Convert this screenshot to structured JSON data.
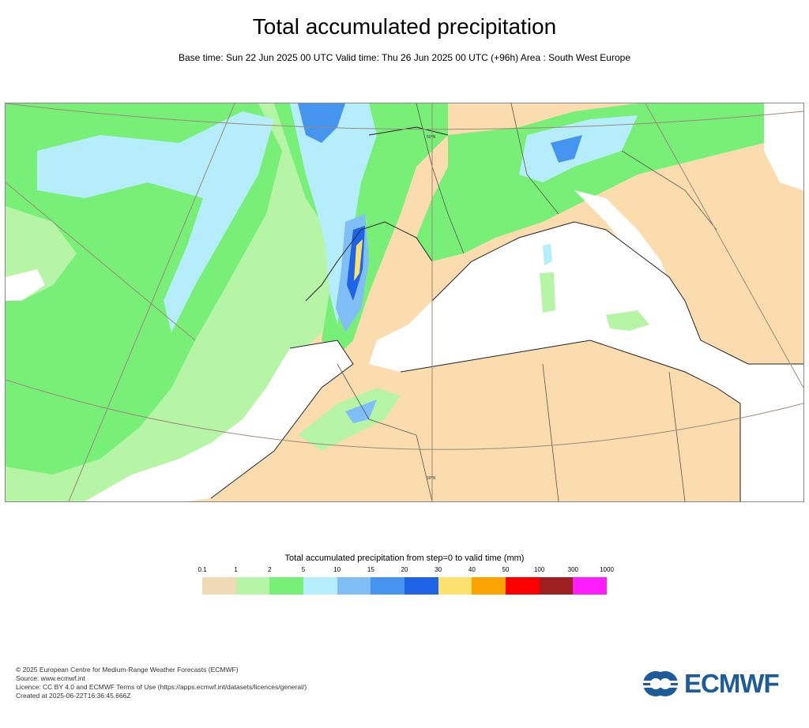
{
  "header": {
    "title": "Total accumulated precipitation",
    "subtitle": "Base time: Sun 22 Jun 2025 00 UTC Valid time: Thu 26 Jun 2025 00 UTC (+96h) Area : South West Europe"
  },
  "map": {
    "grid_labels": [
      "30°N"
    ],
    "lat_label_top": "50°N"
  },
  "legend": {
    "title": "Total accumulated precipitation from step=0 to valid time (mm)",
    "ticks": [
      "0.1",
      "1",
      "2",
      "5",
      "10",
      "15",
      "20",
      "30",
      "40",
      "50",
      "100",
      "300",
      "1000"
    ],
    "colors": [
      "#f0d9b5",
      "#b5f5a5",
      "#78f078",
      "#b5eefa",
      "#7fbef7",
      "#4595f0",
      "#1f64e6",
      "#fce16f",
      "#fba300",
      "#fa0000",
      "#9e1f1f",
      "#ff1cff"
    ]
  },
  "footer": {
    "line1": "© 2025 European Centre for Medium-Range Weather Forecasts (ECMWF)",
    "line2": "Source: www.ecmwf.int",
    "line3": "Licence: CC BY 4.0 and ECMWF Terms of Use (https://apps.ecmwf.int/datasets/licences/general/)",
    "line4": "Created at 2025-06-22T16:36:45.666Z"
  },
  "logo": {
    "text": "ECMWF",
    "color": "#1d5c99",
    "icon": "ecmwf-logo-icon"
  }
}
